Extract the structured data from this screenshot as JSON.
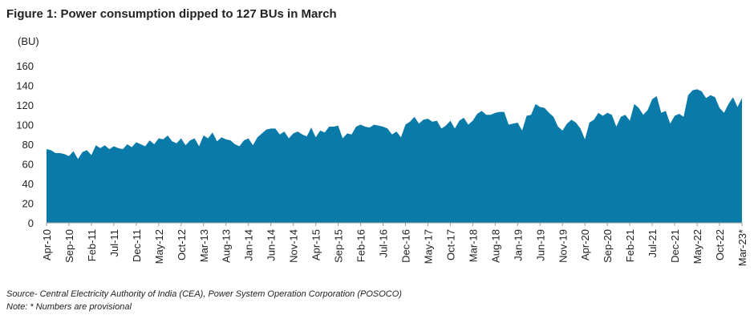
{
  "chart_data": {
    "type": "area",
    "title": "Figure 1: Power consumption dipped to 127 BUs in March",
    "y_label": "(BU)",
    "source": "Source- Central Electricity Authority of India (CEA), Power System Operation Corporation (POSOCO)",
    "note": "Note: * Numbers are provisional",
    "color": "#0a7aa8",
    "categories": [
      "Apr-10",
      null,
      null,
      null,
      null,
      "Sep-10",
      null,
      null,
      null,
      null,
      "Feb-11",
      null,
      null,
      null,
      null,
      "Jul-11",
      null,
      null,
      null,
      null,
      "Dec-11",
      null,
      null,
      null,
      null,
      "May-12",
      null,
      null,
      null,
      null,
      "Oct-12",
      null,
      null,
      null,
      null,
      "Mar-13",
      null,
      null,
      null,
      null,
      "Aug-13",
      null,
      null,
      null,
      null,
      "Jan-14",
      null,
      null,
      null,
      null,
      "Jun-14",
      null,
      null,
      null,
      null,
      "Nov-14",
      null,
      null,
      null,
      null,
      "Apr-15",
      null,
      null,
      null,
      null,
      "Sep-15",
      null,
      null,
      null,
      null,
      "Feb-16",
      null,
      null,
      null,
      null,
      "Jul-16",
      null,
      null,
      null,
      null,
      "Dec-16",
      null,
      null,
      null,
      null,
      "May-17",
      null,
      null,
      null,
      null,
      "Oct-17",
      null,
      null,
      null,
      null,
      "Mar-18",
      null,
      null,
      null,
      null,
      "Aug-18",
      null,
      null,
      null,
      null,
      "Jan-19",
      null,
      null,
      null,
      null,
      "Jun-19",
      null,
      null,
      null,
      null,
      "Nov-19",
      null,
      null,
      null,
      null,
      "Apr-20",
      null,
      null,
      null,
      null,
      "Sep-20",
      null,
      null,
      null,
      null,
      "Feb-21",
      null,
      null,
      null,
      null,
      "Jul-21",
      null,
      null,
      null,
      null,
      "Dec-21",
      null,
      null,
      null,
      null,
      "May-22",
      null,
      null,
      null,
      null,
      "Oct-22",
      null,
      null,
      null,
      null,
      "Mar-23*"
    ],
    "values": [
      75,
      74,
      71,
      71,
      70,
      68,
      73,
      65,
      72,
      74,
      69,
      79,
      76,
      79,
      75,
      78,
      76,
      75,
      80,
      77,
      82,
      80,
      78,
      84,
      80,
      86,
      85,
      89,
      83,
      81,
      86,
      79,
      84,
      86,
      78,
      89,
      86,
      92,
      83,
      87,
      85,
      84,
      80,
      78,
      84,
      86,
      79,
      87,
      91,
      95,
      96,
      96,
      90,
      93,
      86,
      91,
      93,
      90,
      88,
      97,
      87,
      94,
      92,
      98,
      98,
      99,
      86,
      91,
      90,
      98,
      100,
      98,
      97,
      100,
      99,
      98,
      96,
      90,
      93,
      87,
      100,
      103,
      108,
      101,
      105,
      106,
      103,
      104,
      96,
      99,
      104,
      96,
      104,
      107,
      100,
      104,
      111,
      114,
      110,
      110,
      112,
      113,
      113,
      100,
      101,
      102,
      94,
      109,
      110,
      121,
      118,
      117,
      112,
      108,
      98,
      94,
      101,
      105,
      102,
      96,
      85,
      102,
      105,
      112,
      109,
      112,
      110,
      98,
      108,
      110,
      104,
      121,
      117,
      110,
      115,
      126,
      129,
      112,
      114,
      101,
      109,
      111,
      108,
      130,
      135,
      136,
      134,
      127,
      130,
      128,
      117,
      112,
      121,
      128,
      118,
      127
    ],
    "ylim": [
      0,
      160
    ],
    "yticks": [
      0,
      20,
      40,
      60,
      80,
      100,
      120,
      140,
      160
    ]
  }
}
